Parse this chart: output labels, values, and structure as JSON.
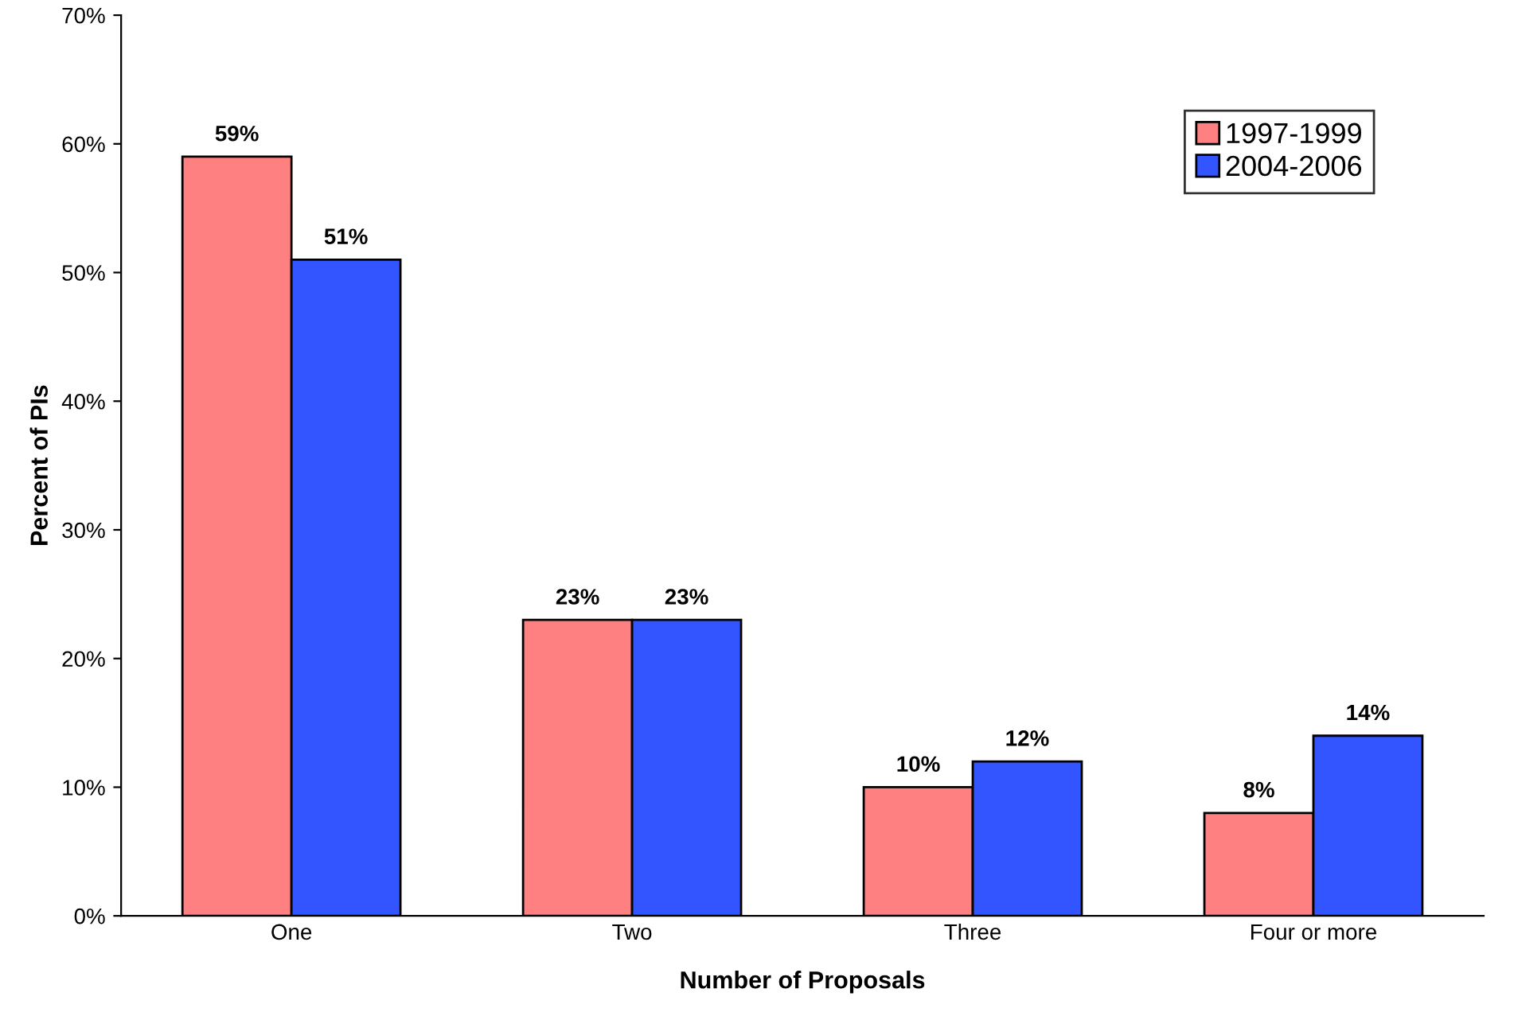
{
  "chart_data": {
    "type": "bar",
    "xlabel": "Number of Proposals",
    "ylabel": "Percent of PIs",
    "categories": [
      "One",
      "Two",
      "Three",
      "Four or more"
    ],
    "series": [
      {
        "name": "1997-1999",
        "color": "#ff8080",
        "values": [
          59,
          23,
          10,
          8
        ],
        "value_labels": [
          "59%",
          "23%",
          "10%",
          "8%"
        ]
      },
      {
        "name": "2004-2006",
        "color": "#3355ff",
        "values": [
          51,
          23,
          12,
          14
        ],
        "value_labels": [
          "51%",
          "23%",
          "12%",
          "14%"
        ]
      }
    ],
    "ylim": [
      0,
      70
    ],
    "yticks": [
      {
        "value": 0,
        "label": "0%"
      },
      {
        "value": 10,
        "label": "10%"
      },
      {
        "value": 20,
        "label": "20%"
      },
      {
        "value": 30,
        "label": "30%"
      },
      {
        "value": 40,
        "label": "40%"
      },
      {
        "value": 50,
        "label": "50%"
      },
      {
        "value": 60,
        "label": "60%"
      },
      {
        "value": 70,
        "label": "70%"
      }
    ],
    "grid": false,
    "legend": "top right"
  }
}
